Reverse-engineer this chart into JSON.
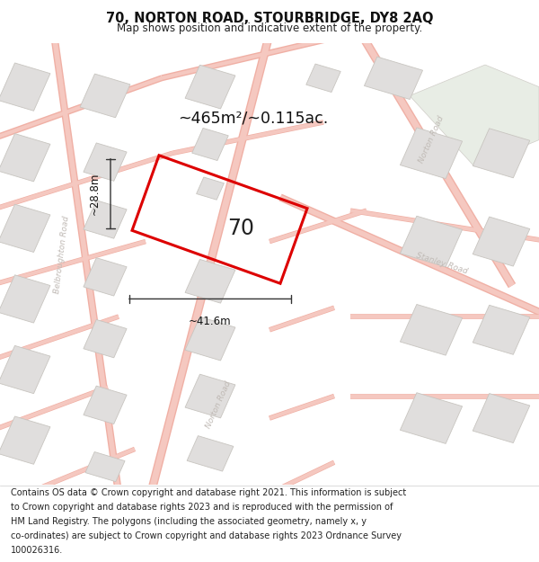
{
  "title": "70, NORTON ROAD, STOURBRIDGE, DY8 2AQ",
  "subtitle": "Map shows position and indicative extent of the property.",
  "area_label": "~465m²/~0.115ac.",
  "width_label": "~41.6m",
  "height_label": "~28.8m",
  "number_label": "70",
  "bg_color": "#f7f6f4",
  "road_fill": "#f5c8c0",
  "road_edge": "#f0b0a5",
  "building_face": "#e0dedd",
  "building_edge": "#c8c5c0",
  "plot_color": "#dd0000",
  "road_label_color": "#c0bab5",
  "green_area": "#e8ede5",
  "title_fontsize": 10.5,
  "subtitle_fontsize": 8.5,
  "footer_fontsize": 7.0,
  "footer_lines": [
    "Contains OS data © Crown copyright and database right 2021. This information is subject",
    "to Crown copyright and database rights 2023 and is reproduced with the permission of",
    "HM Land Registry. The polygons (including the associated geometry, namely x, y",
    "co-ordinates) are subject to Crown copyright and database rights 2023 Ordnance Survey",
    "100026316."
  ]
}
